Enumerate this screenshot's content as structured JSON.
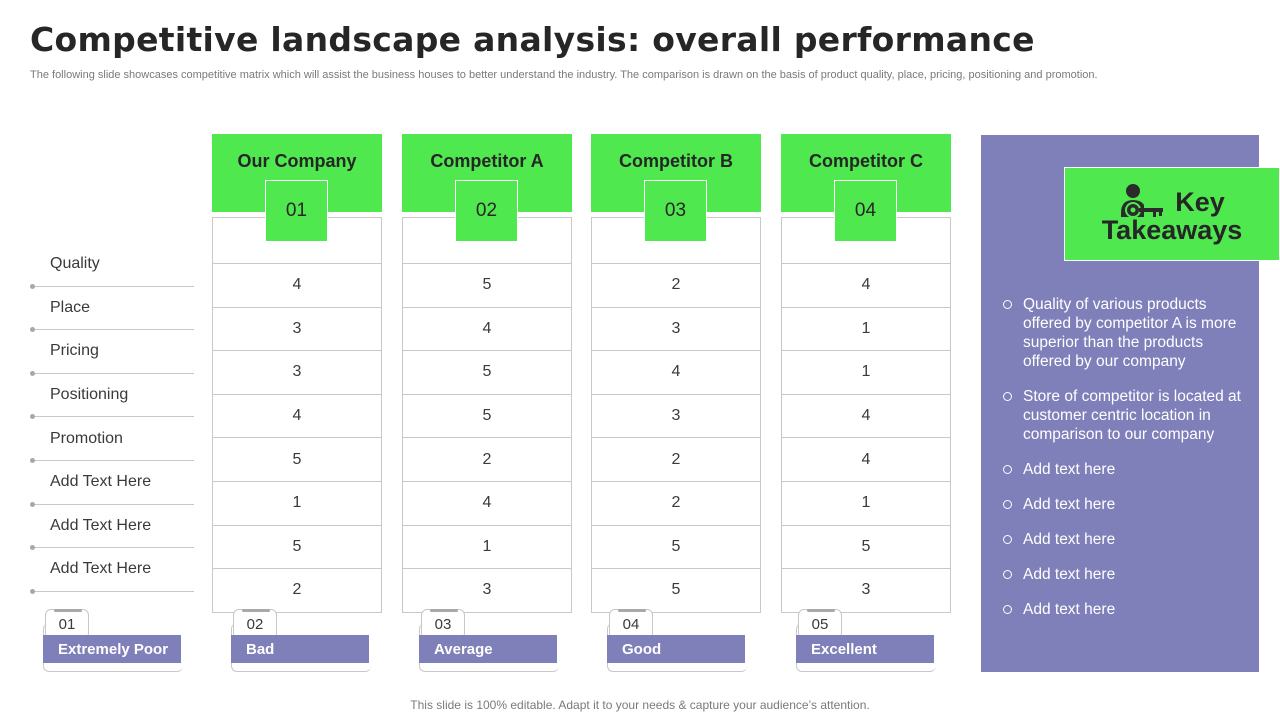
{
  "title": "Competitive landscape analysis: overall performance",
  "subtitle": "The following slide showcases competitive matrix which will assist the business houses to better understand the industry. The comparison is drawn on the basis of product quality, place, pricing, positioning and promotion.",
  "rows": [
    "Quality",
    "Place",
    "Pricing",
    "Positioning",
    "Promotion",
    "Add Text Here",
    "Add Text Here",
    "Add Text Here"
  ],
  "companies": [
    {
      "name": "Our Company",
      "num": "01",
      "values": [
        "4",
        "3",
        "3",
        "4",
        "5",
        "1",
        "5",
        "2"
      ]
    },
    {
      "name": "Competitor A",
      "num": "02",
      "values": [
        "5",
        "4",
        "5",
        "5",
        "2",
        "4",
        "1",
        "3"
      ]
    },
    {
      "name": "Competitor B",
      "num": "03",
      "values": [
        "2",
        "3",
        "4",
        "3",
        "2",
        "2",
        "5",
        "5"
      ]
    },
    {
      "name": "Competitor C",
      "num": "04",
      "values": [
        "4",
        "1",
        "1",
        "4",
        "4",
        "1",
        "5",
        "3"
      ]
    }
  ],
  "scale": [
    {
      "num": "01",
      "label": "Extremely Poor"
    },
    {
      "num": "02",
      "label": "Bad"
    },
    {
      "num": "03",
      "label": "Average"
    },
    {
      "num": "04",
      "label": "Good"
    },
    {
      "num": "05",
      "label": "Excellent"
    }
  ],
  "takeaways": {
    "title_line1": "Key",
    "title_line2": "Takeaways",
    "icon": "person-key-icon",
    "items": [
      "Quality  of various products offered by competitor A is more superior than the products offered by our company",
      "Store of competitor is located at customer centric location in comparison to our company",
      "Add text here",
      "Add text here",
      "Add text here",
      "Add text here",
      "Add text here"
    ]
  },
  "footer": "This slide is 100% editable. Adapt it to your needs & capture your audience’s attention.",
  "colors": {
    "accent_green": "#4fe84f",
    "panel_purple": "#7f7fba"
  }
}
